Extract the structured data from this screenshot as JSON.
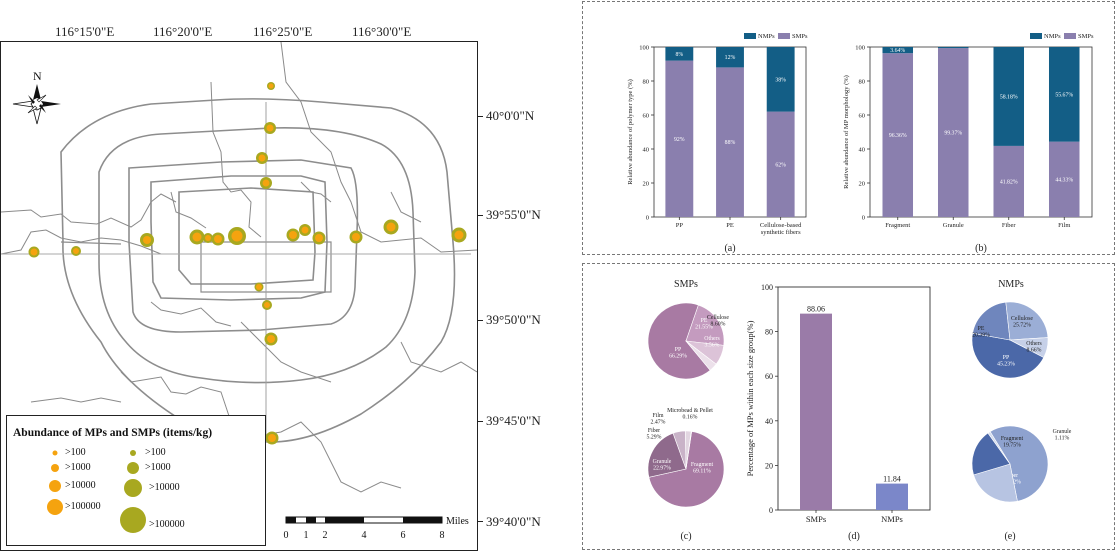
{
  "map": {
    "lon_labels": [
      "116°15'0\"E",
      "116°20'0\"E",
      "116°25'0\"E",
      "116°30'0\"E"
    ],
    "lat_labels": [
      "40°0'0\"N",
      "39°55'0\"N",
      "39°50'0\"N",
      "39°45'0\"N",
      "39°40'0\"N"
    ],
    "north_label": "N",
    "legend": {
      "title": "Abundance of MPs and SMPs (items/kg)",
      "mp_labels": [
        ">100",
        ">1000",
        ">10000",
        ">100000"
      ],
      "smp_labels": [
        ">100",
        ">1000",
        ">10000",
        ">100000"
      ],
      "colors": {
        "mps": "#f5a30f",
        "smps": "#a8a820",
        "ring_fill": "#f5a30f"
      }
    },
    "scalebar": {
      "ticks": [
        "0",
        "1",
        "2",
        "4",
        "6",
        "8"
      ],
      "unit": "Miles"
    }
  },
  "chart_data": [
    {
      "id": "a",
      "type": "bar",
      "stacked": true,
      "panel_label": "(a)",
      "ylabel": "Relative abundance of polymer type (%)",
      "ylim": [
        0,
        100
      ],
      "yticks": [
        "0",
        "20",
        "40",
        "60",
        "80",
        "100"
      ],
      "categories": [
        "PP",
        "PE",
        "Cellulose-based synthetic fibers"
      ],
      "category_labels": [
        [
          "PP"
        ],
        [
          "PE"
        ],
        [
          "Cellulose-based",
          "synthetic fibers"
        ]
      ],
      "series": [
        {
          "name": "SMPs",
          "values": [
            92,
            88,
            62
          ],
          "labels": [
            "92%",
            "88%",
            "62%"
          ],
          "color": "#8a7fae"
        },
        {
          "name": "NMPs",
          "values": [
            8,
            12,
            38
          ],
          "labels": [
            "8%",
            "12%",
            "38%"
          ],
          "color": "#135e86"
        }
      ],
      "legend_position": "top-right"
    },
    {
      "id": "b",
      "type": "bar",
      "stacked": true,
      "panel_label": "(b)",
      "ylabel": "Relative abundance of MP morphology (%)",
      "ylim": [
        0,
        100
      ],
      "yticks": [
        "0",
        "20",
        "40",
        "60",
        "80",
        "100"
      ],
      "categories": [
        "Fragment",
        "Granule",
        "Fiber",
        "Film"
      ],
      "category_labels": [
        [
          "Fragment"
        ],
        [
          "Granule"
        ],
        [
          "Fiber"
        ],
        [
          "Film"
        ]
      ],
      "series": [
        {
          "name": "SMPs",
          "values": [
            96.36,
            99.37,
            41.82,
            44.33
          ],
          "labels": [
            "96.36%",
            "99.37%",
            "41.82%",
            "44.33%"
          ],
          "color": "#8a7fae"
        },
        {
          "name": "NMPs",
          "values": [
            3.64,
            0.63,
            58.18,
            55.67
          ],
          "labels": [
            "3.64%",
            "",
            "58.18%",
            "55.67%"
          ],
          "color": "#135e86"
        }
      ],
      "legend_position": "top-right"
    },
    {
      "id": "c",
      "type": "pie",
      "panel_label": "(c)",
      "title": "SMPs",
      "charts": [
        {
          "slices": [
            {
              "name": "PP",
              "value": 66.29,
              "label": "PP 66.29%",
              "color": "#a87aa3"
            },
            {
              "name": "PE",
              "value": 21.55,
              "label": "PE 21.55%",
              "color": "#c49bbf"
            },
            {
              "name": "Cellulose",
              "value": 8.6,
              "label": "Cellulose 8.60%",
              "color": "#dcc3d8"
            },
            {
              "name": "Others",
              "value": 3.56,
              "label": "Others 3.56%",
              "color": "#ece0ea"
            }
          ]
        },
        {
          "slices": [
            {
              "name": "Fragment",
              "value": 69.11,
              "label": "Fragment 69.11%",
              "color": "#a87aa3"
            },
            {
              "name": "Granule",
              "value": 22.97,
              "label": "Granule 22.97%",
              "color": "#8f6a8c"
            },
            {
              "name": "Fiber",
              "value": 5.29,
              "label": "Fiber 5.29%",
              "color": "#c9b3c8"
            },
            {
              "name": "Film",
              "value": 2.47,
              "label": "Film 2.47%",
              "color": "#e2d6e1"
            },
            {
              "name": "Microbead & Pellet",
              "value": 0.16,
              "label": "Microbead & Pellet 0.16%",
              "color": "#f3eef3"
            }
          ]
        }
      ]
    },
    {
      "id": "d",
      "type": "bar",
      "panel_label": "(d)",
      "ylabel": "Percentage of MPs within each size group(%)",
      "ylim": [
        0,
        100
      ],
      "yticks": [
        "0",
        "20",
        "40",
        "60",
        "80",
        "100"
      ],
      "categories": [
        "SMPs",
        "NMPs"
      ],
      "values": [
        88.06,
        11.84
      ],
      "value_labels": [
        "88.06",
        "11.84"
      ],
      "colors": [
        "#9a7ba8",
        "#7b87c9"
      ]
    },
    {
      "id": "e",
      "type": "pie",
      "panel_label": "(e)",
      "title": "NMPs",
      "charts": [
        {
          "slices": [
            {
              "name": "PP",
              "value": 45.23,
              "label": "PP 45.23%",
              "color": "#4b68a8"
            },
            {
              "name": "PE",
              "value": 20.39,
              "label": "PE 20.39%",
              "color": "#6f86bd"
            },
            {
              "name": "Cellulose",
              "value": 25.72,
              "label": "Cellulose 25.72%",
              "color": "#9baed6"
            },
            {
              "name": "Others",
              "value": 8.66,
              "label": "Others 8.66%",
              "color": "#c6d0e8"
            }
          ]
        },
        {
          "slices": [
            {
              "name": "Fiber",
              "value": 55.62,
              "label": "Fiber 55.62%",
              "color": "#8ea2cf"
            },
            {
              "name": "Film",
              "value": 23.51,
              "label": "Film 23.51%",
              "color": "#b7c4e2"
            },
            {
              "name": "Fragment",
              "value": 19.75,
              "label": "Fragment 19.75%",
              "color": "#4b68a8"
            },
            {
              "name": "Granule",
              "value": 1.11,
              "label": "Granule 1.11%",
              "color": "#d4dcee"
            }
          ]
        }
      ]
    }
  ]
}
